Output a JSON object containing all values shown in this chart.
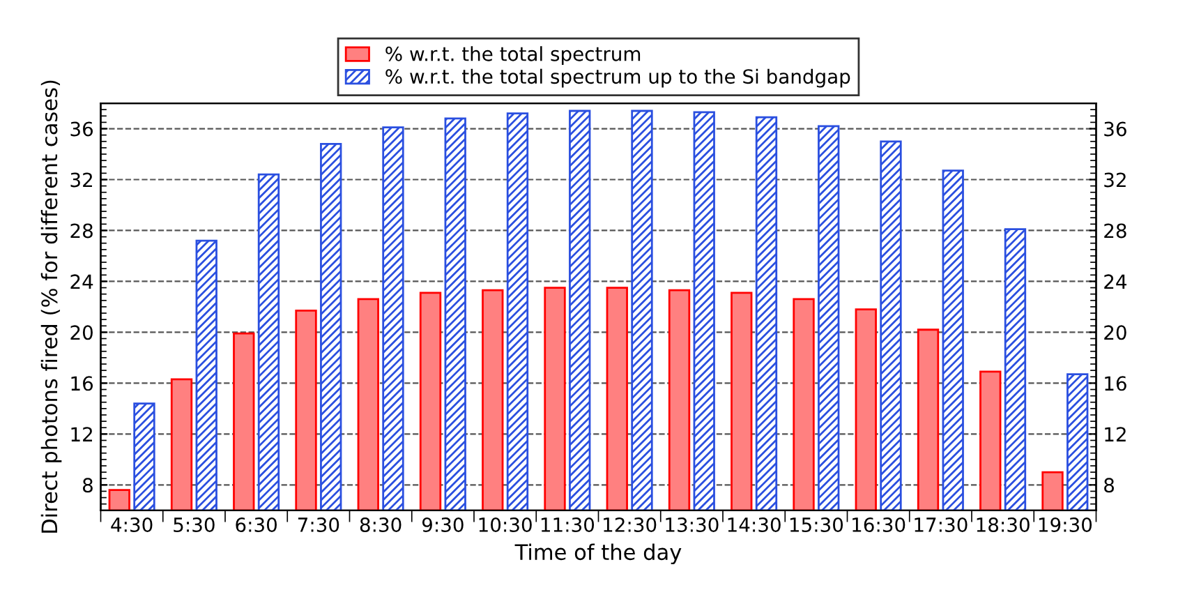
{
  "chart_data": {
    "type": "bar",
    "xlabel": "Time of the day",
    "ylabel": "Direct photons fired (% for different cases)",
    "categories": [
      "4:30",
      "5:30",
      "6:30",
      "7:30",
      "8:30",
      "9:30",
      "10:30",
      "11:30",
      "12:30",
      "13:30",
      "14:30",
      "15:30",
      "16:30",
      "17:30",
      "18:30",
      "19:30"
    ],
    "series": [
      {
        "name": "% w.r.t. the total spectrum",
        "color": "#ff8080",
        "values": [
          7.6,
          16.3,
          19.9,
          21.7,
          22.6,
          23.1,
          23.3,
          23.5,
          23.5,
          23.3,
          23.1,
          22.6,
          21.8,
          20.2,
          16.9,
          9.0
        ]
      },
      {
        "name": "% w.r.t. the total spectrum up to the Si bandgap",
        "color": "#2a4fe0",
        "values": [
          14.4,
          27.2,
          32.4,
          34.8,
          36.1,
          36.8,
          37.2,
          37.4,
          37.4,
          37.3,
          36.9,
          36.2,
          35.0,
          32.7,
          28.1,
          16.7
        ]
      }
    ],
    "ylim": [
      6,
      38
    ],
    "yticks": [
      8,
      12,
      16,
      20,
      24,
      28,
      32,
      36
    ],
    "y2lim": [
      6,
      38
    ],
    "y2ticks": [
      8,
      12,
      16,
      20,
      24,
      28,
      32,
      36
    ],
    "grid": "y",
    "legend": "top"
  }
}
